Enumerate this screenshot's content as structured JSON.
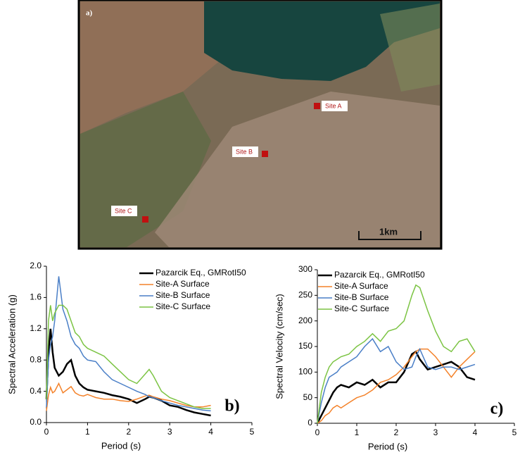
{
  "map": {
    "panel_label": "a)",
    "sites": [
      "Site A",
      "Site B",
      "Site C"
    ],
    "scale_label": "1km"
  },
  "chart_data": [
    {
      "type": "line",
      "annotation": "b)",
      "x_label": "Period (s)",
      "y_label": "Spectral Acceleration (g)",
      "xlim": [
        0,
        5
      ],
      "xticks": [
        0,
        1,
        2,
        3,
        4,
        5
      ],
      "ylim": [
        0,
        2
      ],
      "yticks": [
        {
          "value": 0,
          "label": "0.0"
        },
        0.4,
        0.8,
        1.2,
        1.6,
        {
          "value": 2,
          "label": "2.0"
        }
      ],
      "legend": "top-right",
      "grid": false,
      "x": [
        0,
        0.05,
        0.1,
        0.15,
        0.2,
        0.3,
        0.4,
        0.5,
        0.6,
        0.7,
        0.8,
        0.9,
        1.0,
        1.2,
        1.4,
        1.6,
        1.8,
        2.0,
        2.2,
        2.4,
        2.5,
        2.6,
        2.8,
        3.0,
        3.2,
        3.4,
        3.6,
        3.8,
        4.0
      ],
      "series": [
        {
          "name": "Pazarcik Eq., GMRotI50",
          "color": "#000000",
          "values": [
            0.3,
            0.9,
            1.2,
            0.9,
            0.7,
            0.6,
            0.65,
            0.75,
            0.8,
            0.6,
            0.5,
            0.45,
            0.42,
            0.4,
            0.38,
            0.35,
            0.33,
            0.3,
            0.25,
            0.3,
            0.33,
            0.32,
            0.28,
            0.22,
            0.2,
            0.16,
            0.13,
            0.11,
            0.09
          ]
        },
        {
          "name": "Site-A Surface",
          "color": "#f4822a",
          "values": [
            0.15,
            0.35,
            0.45,
            0.38,
            0.4,
            0.5,
            0.38,
            0.42,
            0.46,
            0.38,
            0.35,
            0.34,
            0.36,
            0.32,
            0.3,
            0.3,
            0.28,
            0.27,
            0.3,
            0.34,
            0.35,
            0.33,
            0.3,
            0.28,
            0.25,
            0.22,
            0.2,
            0.2,
            0.22
          ]
        },
        {
          "name": "Site-B Surface",
          "color": "#4a7fc7",
          "values": [
            0.2,
            0.8,
            1.0,
            1.1,
            1.3,
            1.87,
            1.45,
            1.3,
            1.1,
            1.0,
            0.95,
            0.85,
            0.8,
            0.78,
            0.65,
            0.55,
            0.5,
            0.45,
            0.4,
            0.36,
            0.33,
            0.32,
            0.28,
            0.25,
            0.22,
            0.2,
            0.18,
            0.16,
            0.15
          ]
        },
        {
          "name": "Site-C Surface",
          "color": "#7cc444",
          "values": [
            0.3,
            1.3,
            1.5,
            1.3,
            1.4,
            1.5,
            1.5,
            1.45,
            1.3,
            1.15,
            1.1,
            1.0,
            0.95,
            0.9,
            0.85,
            0.75,
            0.65,
            0.55,
            0.5,
            0.62,
            0.68,
            0.6,
            0.4,
            0.32,
            0.28,
            0.24,
            0.2,
            0.18,
            0.18
          ]
        }
      ]
    },
    {
      "type": "line",
      "annotation": "c)",
      "x_label": "Period (s)",
      "y_label": "Spectral Velocity (cm/sec)",
      "xlim": [
        0,
        5
      ],
      "xticks": [
        0,
        1,
        2,
        3,
        4,
        5
      ],
      "ylim": [
        0,
        300
      ],
      "yticks": [
        0,
        50,
        100,
        150,
        200,
        250,
        300
      ],
      "legend": "top-right",
      "grid": false,
      "x": [
        0,
        0.1,
        0.2,
        0.3,
        0.4,
        0.5,
        0.6,
        0.8,
        1.0,
        1.2,
        1.4,
        1.6,
        1.8,
        2.0,
        2.2,
        2.4,
        2.5,
        2.6,
        2.8,
        3.0,
        3.2,
        3.4,
        3.6,
        3.8,
        4.0
      ],
      "series": [
        {
          "name": "Pazarcik Eq., GMRotI50",
          "color": "#000000",
          "values": [
            0,
            15,
            30,
            45,
            60,
            70,
            75,
            70,
            80,
            75,
            85,
            70,
            80,
            80,
            100,
            135,
            140,
            125,
            105,
            110,
            115,
            120,
            110,
            90,
            85
          ]
        },
        {
          "name": "Site-A Surface",
          "color": "#f4822a",
          "values": [
            0,
            5,
            15,
            20,
            30,
            35,
            30,
            40,
            50,
            55,
            65,
            80,
            85,
            95,
            110,
            130,
            140,
            145,
            145,
            130,
            110,
            90,
            110,
            125,
            140
          ]
        },
        {
          "name": "Site-B Surface",
          "color": "#4a7fc7",
          "values": [
            0,
            40,
            70,
            90,
            95,
            100,
            110,
            120,
            130,
            150,
            165,
            140,
            150,
            120,
            105,
            110,
            130,
            145,
            110,
            105,
            110,
            110,
            105,
            110,
            115
          ]
        },
        {
          "name": "Site-C Surface",
          "color": "#7cc444",
          "values": [
            0,
            60,
            90,
            110,
            120,
            125,
            130,
            135,
            150,
            160,
            175,
            160,
            180,
            185,
            200,
            250,
            270,
            265,
            220,
            180,
            150,
            140,
            160,
            165,
            140
          ]
        }
      ]
    }
  ]
}
